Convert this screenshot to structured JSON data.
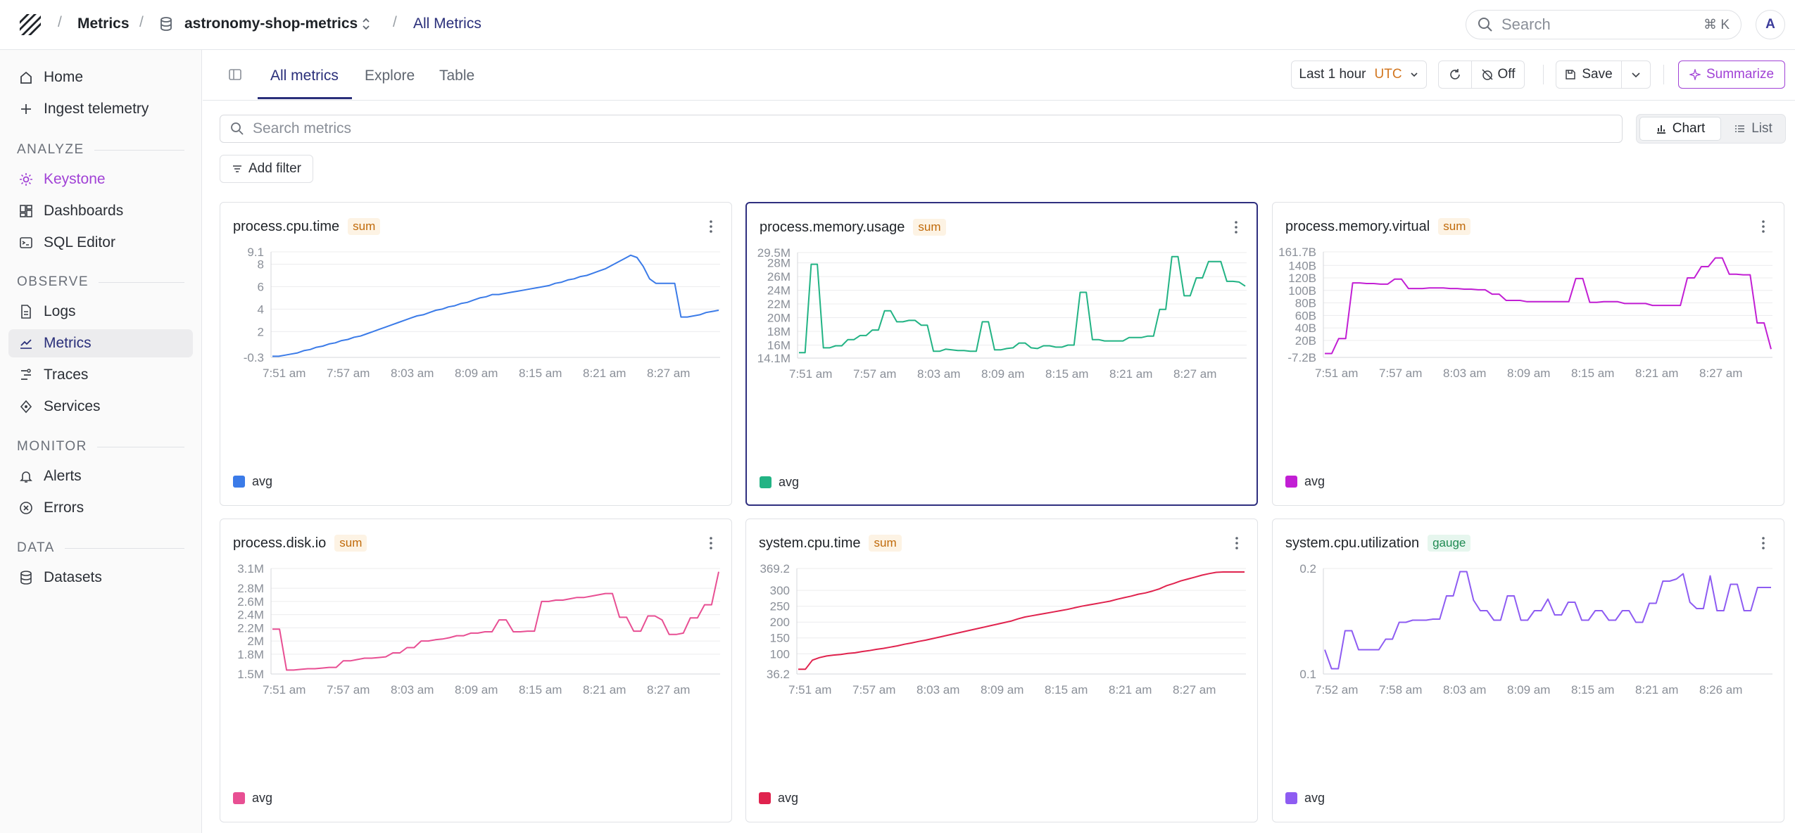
{
  "breadcrumb": {
    "section": "Metrics",
    "dataset": "astronomy-shop-metrics",
    "page": "All Metrics"
  },
  "search": {
    "placeholder": "Search",
    "shortcut": "⌘ K"
  },
  "user": {
    "initial": "A"
  },
  "sidebar": {
    "top": [
      {
        "label": "Home",
        "icon": "home-icon"
      },
      {
        "label": "Ingest telemetry",
        "icon": "plus-icon"
      }
    ],
    "sections": [
      {
        "title": "ANALYZE",
        "items": [
          {
            "label": "Keystone",
            "icon": "sparkle-icon"
          },
          {
            "label": "Dashboards",
            "icon": "dashboard-icon"
          },
          {
            "label": "SQL Editor",
            "icon": "terminal-icon"
          }
        ]
      },
      {
        "title": "OBSERVE",
        "items": [
          {
            "label": "Logs",
            "icon": "document-icon"
          },
          {
            "label": "Metrics",
            "icon": "chart-line-icon"
          },
          {
            "label": "Traces",
            "icon": "trace-icon"
          },
          {
            "label": "Services",
            "icon": "services-icon"
          }
        ]
      },
      {
        "title": "MONITOR",
        "items": [
          {
            "label": "Alerts",
            "icon": "bell-icon"
          },
          {
            "label": "Errors",
            "icon": "error-icon"
          }
        ]
      },
      {
        "title": "DATA",
        "items": [
          {
            "label": "Datasets",
            "icon": "database-icon"
          }
        ]
      }
    ]
  },
  "tabs": [
    "All metrics",
    "Explore",
    "Table"
  ],
  "toolbar": {
    "time_range": "Last 1 hour",
    "timezone": "UTC",
    "refresh_label": "Off",
    "save_label": "Save",
    "summarize_label": "Summarize"
  },
  "metrics_search": {
    "placeholder": "Search metrics"
  },
  "view_toggle": {
    "chart": "Chart",
    "list": "List",
    "selected": "Chart"
  },
  "add_filter_label": "Add filter",
  "cards": [
    {
      "title": "process.cpu.time",
      "badge": "sum",
      "legend": "avg",
      "color": "#3b7be8",
      "y_ticks": [
        "9.1",
        "8",
        "6",
        "4",
        "2",
        "-0.3"
      ],
      "x_ticks": [
        "7:51 am",
        "7:57 am",
        "8:03 am",
        "8:09 am",
        "8:15 am",
        "8:21 am",
        "8:27 am"
      ]
    },
    {
      "title": "process.memory.usage",
      "badge": "sum",
      "legend": "avg",
      "color": "#22b384",
      "selected": true,
      "y_ticks": [
        "29.5M",
        "28M",
        "26M",
        "24M",
        "22M",
        "20M",
        "18M",
        "16M",
        "14.1M"
      ],
      "x_ticks": [
        "7:51 am",
        "7:57 am",
        "8:03 am",
        "8:09 am",
        "8:15 am",
        "8:21 am",
        "8:27 am"
      ]
    },
    {
      "title": "process.memory.virtual",
      "badge": "sum",
      "legend": "avg",
      "color": "#c21fd4",
      "y_ticks": [
        "161.7B",
        "140B",
        "120B",
        "100B",
        "80B",
        "60B",
        "40B",
        "20B",
        "-7.2B"
      ],
      "x_ticks": [
        "7:51 am",
        "7:57 am",
        "8:03 am",
        "8:09 am",
        "8:15 am",
        "8:21 am",
        "8:27 am"
      ]
    },
    {
      "title": "process.disk.io",
      "badge": "sum",
      "legend": "avg",
      "color": "#e84f93",
      "y_ticks": [
        "3.1M",
        "2.8M",
        "2.6M",
        "2.4M",
        "2.2M",
        "2M",
        "1.8M",
        "1.5M"
      ],
      "x_ticks": [
        "7:51 am",
        "7:57 am",
        "8:03 am",
        "8:09 am",
        "8:15 am",
        "8:21 am",
        "8:27 am"
      ]
    },
    {
      "title": "system.cpu.time",
      "badge": "sum",
      "legend": "avg",
      "color": "#e0234e",
      "y_ticks": [
        "369.2",
        "300",
        "250",
        "200",
        "150",
        "100",
        "36.2"
      ],
      "x_ticks": [
        "7:51 am",
        "7:57 am",
        "8:03 am",
        "8:09 am",
        "8:15 am",
        "8:21 am",
        "8:27 am"
      ]
    },
    {
      "title": "system.cpu.utilization",
      "badge": "gauge",
      "legend": "avg",
      "color": "#8e5cf2",
      "y_ticks": [
        "0.2",
        "0.1"
      ],
      "x_ticks": [
        "7:52 am",
        "7:58 am",
        "8:03 am",
        "8:09 am",
        "8:15 am",
        "8:21 am",
        "8:26 am"
      ]
    }
  ],
  "chart_data": [
    {
      "type": "line",
      "title": "process.cpu.time",
      "ylim": [
        -0.3,
        9.1
      ],
      "series": [
        {
          "name": "avg",
          "values": [
            -0.2,
            -0.2,
            -0.1,
            0.0,
            0.1,
            0.3,
            0.4,
            0.6,
            0.7,
            0.9,
            1.0,
            1.2,
            1.3,
            1.5,
            1.6,
            1.8,
            2.0,
            2.2,
            2.4,
            2.6,
            2.8,
            3.0,
            3.2,
            3.4,
            3.5,
            3.7,
            3.9,
            4.0,
            4.2,
            4.3,
            4.5,
            4.6,
            4.8,
            5.0,
            5.1,
            5.3,
            5.3,
            5.4,
            5.5,
            5.6,
            5.7,
            5.8,
            5.9,
            6.0,
            6.1,
            6.3,
            6.4,
            6.6,
            6.7,
            6.9,
            7.0,
            7.2,
            7.4,
            7.6,
            7.9,
            8.2,
            8.5,
            8.8,
            8.6,
            7.8,
            6.7,
            6.3,
            6.3,
            6.3,
            6.3,
            3.3,
            3.3,
            3.4,
            3.5,
            3.7,
            3.8,
            3.9
          ]
        }
      ]
    },
    {
      "type": "line",
      "title": "process.memory.usage",
      "ylim": [
        14.1,
        29.5
      ],
      "series": [
        {
          "name": "avg",
          "values": [
            14.9,
            14.9,
            27.8,
            27.8,
            15.6,
            15.6,
            15.9,
            15.9,
            16.8,
            16.8,
            17.4,
            17.4,
            18.2,
            18.2,
            21.0,
            21.0,
            19.4,
            19.4,
            19.6,
            19.6,
            18.9,
            18.9,
            15.1,
            15.1,
            15.4,
            15.3,
            15.2,
            15.2,
            15.1,
            15.1,
            19.4,
            19.4,
            15.3,
            15.3,
            15.5,
            15.6,
            16.3,
            16.3,
            15.6,
            15.5,
            15.9,
            15.9,
            15.7,
            15.7,
            16.0,
            16.0,
            23.7,
            23.7,
            16.8,
            16.8,
            16.6,
            16.6,
            16.6,
            16.6,
            17.1,
            17.1,
            17.1,
            17.3,
            17.3,
            21.2,
            21.2,
            28.9,
            28.9,
            23.2,
            23.2,
            25.8,
            25.8,
            28.2,
            28.2,
            28.2,
            25.3,
            25.3,
            25.2,
            24.6
          ]
        }
      ]
    },
    {
      "type": "line",
      "title": "process.memory.virtual",
      "ylim": [
        -7.2,
        161.7
      ],
      "series": [
        {
          "name": "avg",
          "values": [
            -1,
            -1,
            23,
            23,
            112,
            112,
            111,
            111,
            110,
            110,
            118,
            118,
            103,
            103,
            103,
            104,
            104,
            104,
            103,
            103,
            102,
            102,
            101,
            101,
            94,
            94,
            84,
            84,
            84,
            82,
            82,
            82,
            82,
            82,
            82,
            82,
            119,
            119,
            81,
            81,
            82,
            82,
            82,
            79,
            79,
            79,
            79,
            76,
            76,
            76,
            76,
            76,
            120,
            120,
            138,
            138,
            152,
            152,
            126,
            126,
            125,
            125,
            48,
            48,
            6
          ]
        }
      ]
    },
    {
      "type": "line",
      "title": "process.disk.io",
      "ylim": [
        1.5,
        3.1
      ],
      "series": [
        {
          "name": "avg",
          "values": [
            2.18,
            2.18,
            1.56,
            1.56,
            1.57,
            1.58,
            1.58,
            1.59,
            1.6,
            1.6,
            1.7,
            1.7,
            1.72,
            1.74,
            1.74,
            1.75,
            1.76,
            1.82,
            1.82,
            1.9,
            1.9,
            2.0,
            2.0,
            2.02,
            2.03,
            2.05,
            2.08,
            2.08,
            2.12,
            2.12,
            2.14,
            2.14,
            2.32,
            2.32,
            2.14,
            2.14,
            2.15,
            2.15,
            2.6,
            2.6,
            2.62,
            2.62,
            2.64,
            2.66,
            2.66,
            2.68,
            2.7,
            2.72,
            2.72,
            2.36,
            2.36,
            2.15,
            2.15,
            2.38,
            2.38,
            2.32,
            2.1,
            2.1,
            2.12,
            2.35,
            2.35,
            2.55,
            2.55,
            3.05
          ]
        }
      ]
    },
    {
      "type": "line",
      "title": "system.cpu.time",
      "ylim": [
        36.2,
        369.2
      ],
      "series": [
        {
          "name": "avg",
          "values": [
            51,
            51,
            80,
            88,
            93,
            96,
            98,
            101,
            103,
            107,
            110,
            114,
            117,
            121,
            125,
            130,
            134,
            139,
            143,
            148,
            153,
            158,
            163,
            168,
            173,
            178,
            183,
            188,
            193,
            198,
            203,
            210,
            216,
            220,
            224,
            228,
            232,
            236,
            240,
            245,
            250,
            254,
            258,
            262,
            266,
            272,
            277,
            282,
            288,
            292,
            298,
            305,
            315,
            322,
            330,
            336,
            342,
            348,
            353,
            357,
            358,
            358,
            358,
            358
          ]
        }
      ]
    },
    {
      "type": "line",
      "title": "system.cpu.utilization",
      "ylim": [
        0.1,
        0.2
      ],
      "series": [
        {
          "name": "avg",
          "values": [
            0.123,
            0.105,
            0.105,
            0.141,
            0.141,
            0.123,
            0.123,
            0.123,
            0.123,
            0.133,
            0.133,
            0.149,
            0.149,
            0.151,
            0.151,
            0.151,
            0.152,
            0.152,
            0.174,
            0.174,
            0.197,
            0.197,
            0.17,
            0.16,
            0.16,
            0.151,
            0.151,
            0.174,
            0.174,
            0.151,
            0.151,
            0.16,
            0.16,
            0.171,
            0.156,
            0.156,
            0.168,
            0.168,
            0.151,
            0.151,
            0.16,
            0.16,
            0.151,
            0.151,
            0.16,
            0.16,
            0.149,
            0.149,
            0.167,
            0.167,
            0.188,
            0.188,
            0.19,
            0.195,
            0.168,
            0.162,
            0.162,
            0.193,
            0.16,
            0.16,
            0.185,
            0.185,
            0.16,
            0.16,
            0.182,
            0.182,
            0.182
          ]
        }
      ]
    }
  ]
}
